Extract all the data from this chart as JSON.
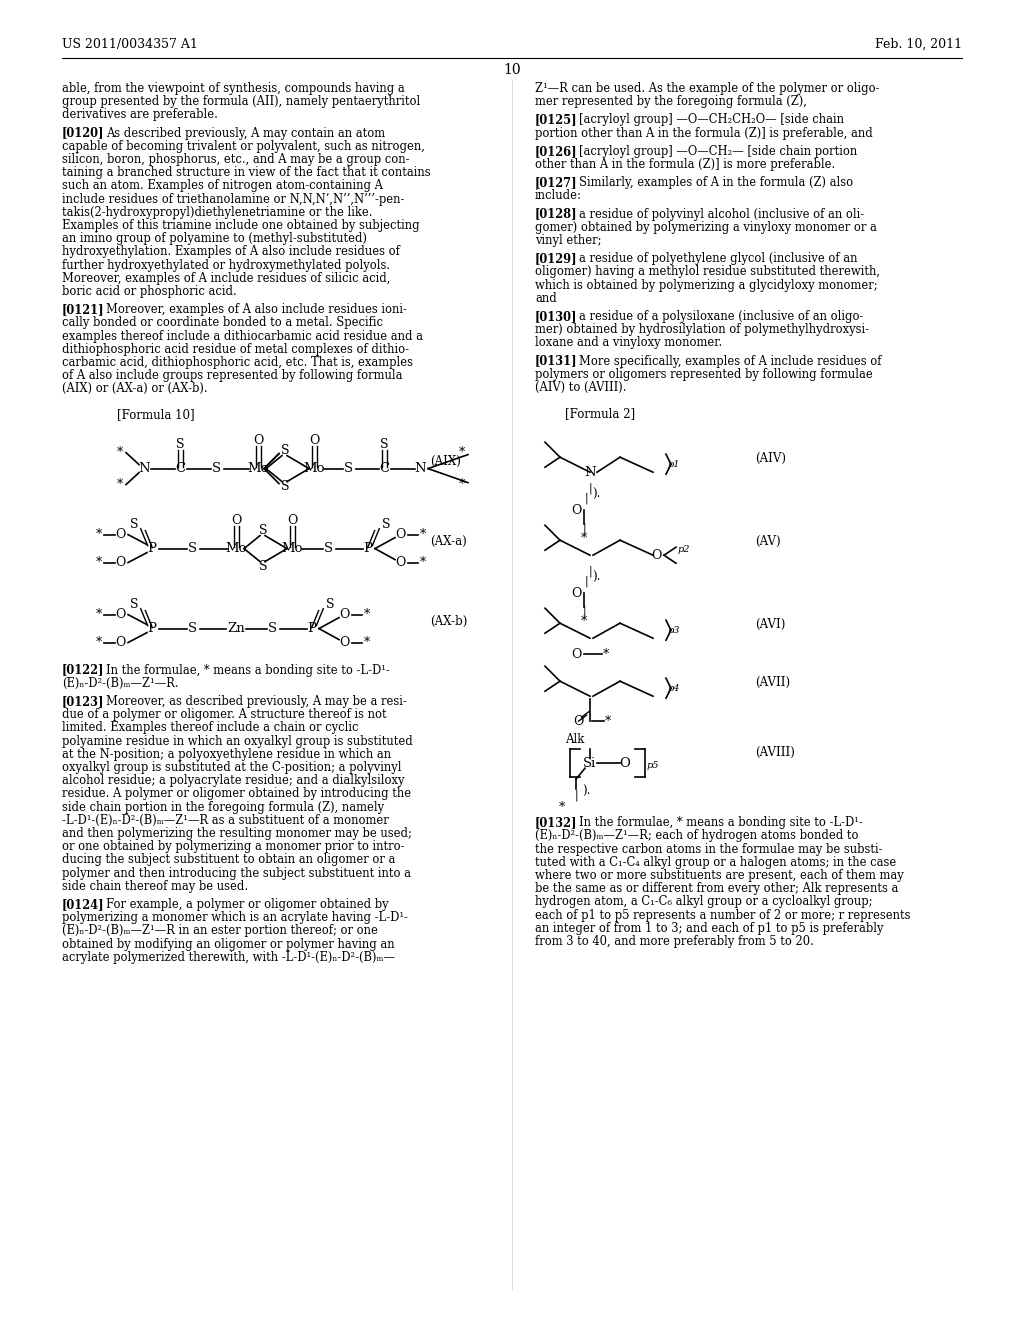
{
  "bg": "#ffffff",
  "header_left": "US 2011/0034357 A1",
  "header_right": "Feb. 10, 2011",
  "page_num": "10"
}
